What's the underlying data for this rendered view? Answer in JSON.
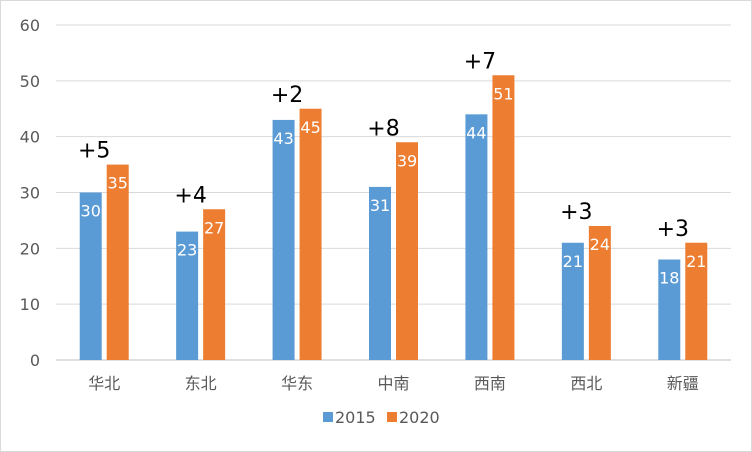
{
  "chart_data": {
    "type": "bar",
    "categories": [
      "华北",
      "东北",
      "华东",
      "中南",
      "西南",
      "西北",
      "新疆"
    ],
    "series": [
      {
        "name": "2015",
        "values": [
          30,
          23,
          43,
          31,
          44,
          21,
          18
        ],
        "color": "#5b9bd5"
      },
      {
        "name": "2020",
        "values": [
          35,
          27,
          45,
          39,
          51,
          24,
          21
        ],
        "color": "#ed7d31"
      }
    ],
    "annotations": [
      "+5",
      "+4",
      "+2",
      "+8",
      "+7",
      "+3",
      "+3"
    ],
    "ylim": [
      0,
      60
    ],
    "yticks": [
      0,
      10,
      20,
      30,
      40,
      50,
      60
    ],
    "grid": true,
    "legend": "bottom",
    "title": "",
    "xlabel": "",
    "ylabel": ""
  }
}
